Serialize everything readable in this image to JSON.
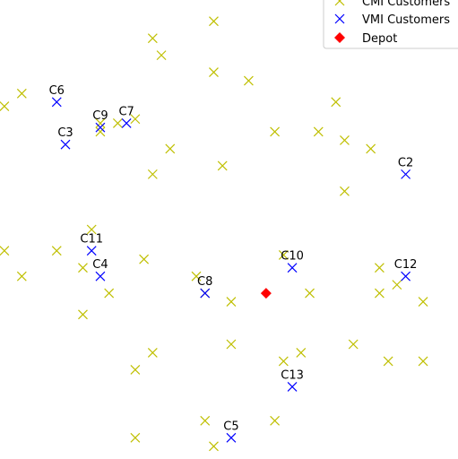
{
  "chart_data": {
    "type": "scatter",
    "xlim": [
      -0.2,
      10.3
    ],
    "ylim": [
      -0.8,
      10.0
    ],
    "legend": {
      "placement": "top-right",
      "entries": [
        {
          "label": "CMI Customers",
          "marker": "x",
          "color": "#bfbf00"
        },
        {
          "label": "VMI Customers",
          "marker": "x",
          "color": "#0000ff"
        },
        {
          "label": "Depot",
          "marker": "diamond",
          "color": "#ff0000"
        }
      ]
    },
    "series": [
      {
        "name": "CMI Customers",
        "marker": "x",
        "color": "#bfbf00",
        "points": [
          [
            3.3,
            9.1
          ],
          [
            4.7,
            9.5
          ],
          [
            3.5,
            8.7
          ],
          [
            4.7,
            8.3
          ],
          [
            5.5,
            8.1
          ],
          [
            0.3,
            7.8
          ],
          [
            -0.1,
            7.5
          ],
          [
            2.5,
            7.1
          ],
          [
            2.9,
            7.2
          ],
          [
            6.1,
            6.9
          ],
          [
            7.1,
            6.9
          ],
          [
            7.5,
            7.6
          ],
          [
            7.7,
            6.7
          ],
          [
            8.3,
            6.5
          ],
          [
            2.1,
            6.9
          ],
          [
            3.7,
            6.5
          ],
          [
            4.9,
            6.1
          ],
          [
            3.3,
            5.9
          ],
          [
            7.7,
            5.5
          ],
          [
            1.9,
            4.6
          ],
          [
            -0.1,
            4.1
          ],
          [
            1.1,
            4.1
          ],
          [
            0.3,
            3.5
          ],
          [
            1.7,
            3.7
          ],
          [
            3.1,
            3.9
          ],
          [
            6.3,
            4.0
          ],
          [
            2.3,
            3.1
          ],
          [
            4.3,
            3.5
          ],
          [
            5.1,
            2.9
          ],
          [
            6.9,
            3.1
          ],
          [
            8.5,
            3.7
          ],
          [
            8.9,
            3.3
          ],
          [
            8.5,
            3.1
          ],
          [
            9.5,
            2.9
          ],
          [
            1.7,
            2.6
          ],
          [
            5.1,
            1.9
          ],
          [
            3.3,
            1.7
          ],
          [
            2.9,
            1.3
          ],
          [
            6.3,
            1.5
          ],
          [
            6.7,
            1.7
          ],
          [
            7.9,
            1.9
          ],
          [
            8.7,
            1.5
          ],
          [
            9.5,
            1.5
          ],
          [
            4.5,
            0.1
          ],
          [
            6.1,
            0.1
          ],
          [
            2.9,
            -0.3
          ],
          [
            4.7,
            -0.5
          ],
          [
            4.5,
            3.1
          ],
          [
            2.1,
            7.1
          ]
        ]
      },
      {
        "name": "VMI Customers",
        "marker": "x",
        "color": "#0000ff",
        "points": [
          {
            "label": "C2",
            "x": 9.1,
            "y": 5.9
          },
          {
            "label": "C3",
            "x": 1.3,
            "y": 6.6
          },
          {
            "label": "C4",
            "x": 2.1,
            "y": 3.5
          },
          {
            "label": "C5",
            "x": 5.1,
            "y": -0.3
          },
          {
            "label": "C6",
            "x": 1.1,
            "y": 7.6
          },
          {
            "label": "C7",
            "x": 2.7,
            "y": 7.1
          },
          {
            "label": "C8",
            "x": 4.5,
            "y": 3.1
          },
          {
            "label": "C9",
            "x": 2.1,
            "y": 7.0
          },
          {
            "label": "C10",
            "x": 6.5,
            "y": 3.7
          },
          {
            "label": "C11",
            "x": 1.9,
            "y": 4.1
          },
          {
            "label": "C12",
            "x": 9.1,
            "y": 3.5
          },
          {
            "label": "C13",
            "x": 6.5,
            "y": 0.9
          }
        ]
      },
      {
        "name": "Depot",
        "marker": "diamond",
        "color": "#ff0000",
        "points": [
          [
            5.9,
            3.1
          ]
        ]
      }
    ]
  }
}
